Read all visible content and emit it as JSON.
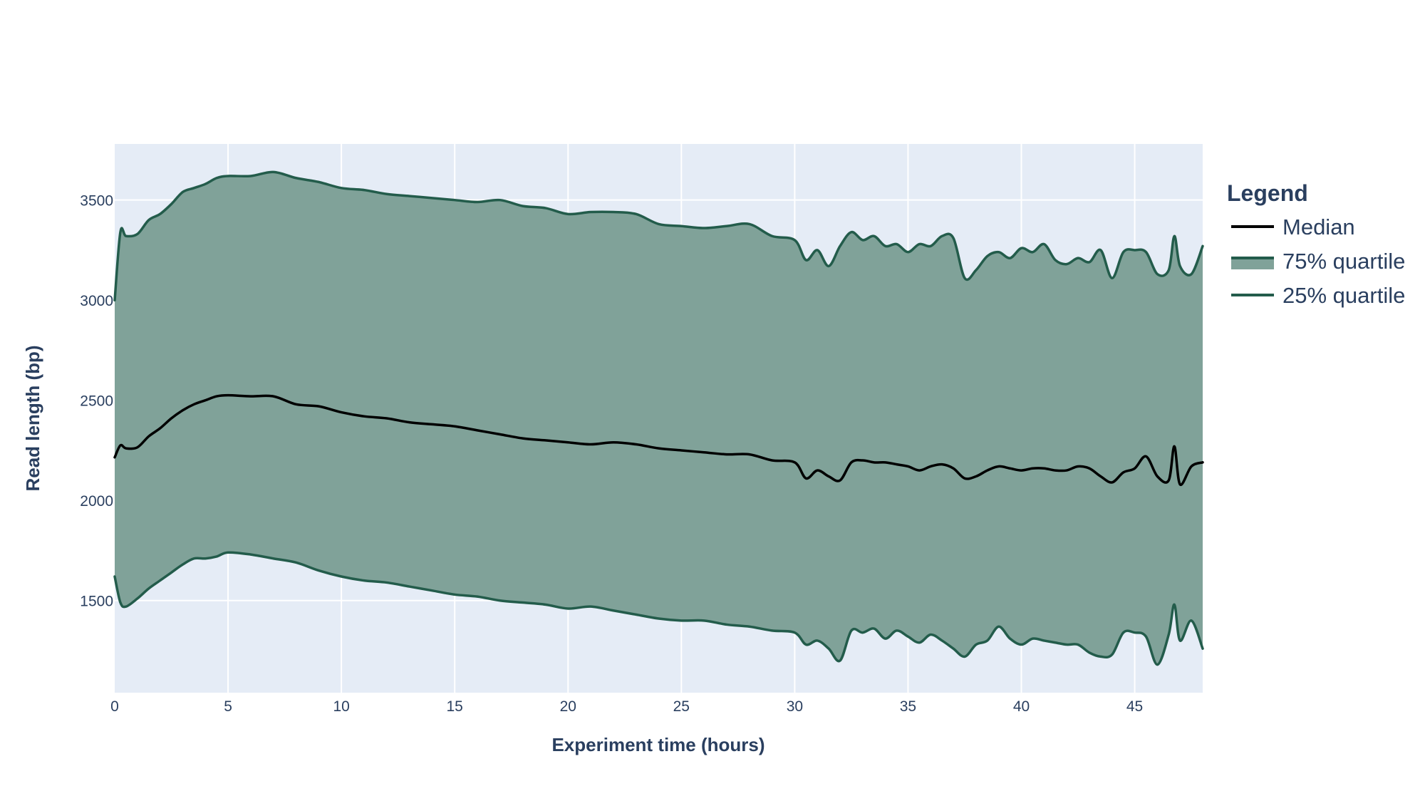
{
  "chart_data": {
    "type": "area",
    "title": "",
    "xlabel": "Experiment time (hours)",
    "ylabel": "Read length (bp)",
    "xlim": [
      0,
      48
    ],
    "ylim": [
      1040,
      3780
    ],
    "grid": true,
    "legend_title": "Legend",
    "legend_position": "right",
    "x_ticks": [
      0,
      5,
      10,
      15,
      20,
      25,
      30,
      35,
      40,
      45
    ],
    "y_ticks": [
      1500,
      2000,
      2500,
      3000,
      3500
    ],
    "fill": {
      "between": [
        "25% quartile",
        "75% quartile"
      ],
      "color": "#80a299"
    },
    "x": [
      0,
      0.25,
      0.5,
      1,
      1.5,
      2,
      2.5,
      3,
      3.5,
      4,
      4.5,
      5,
      6,
      7,
      8,
      9,
      10,
      11,
      12,
      13,
      14,
      15,
      16,
      17,
      18,
      19,
      20,
      21,
      22,
      23,
      24,
      25,
      26,
      27,
      28,
      29,
      30,
      30.5,
      31,
      31.5,
      32,
      32.5,
      33,
      33.5,
      34,
      34.5,
      35,
      35.5,
      36,
      36.5,
      37,
      37.5,
      38,
      38.5,
      39,
      39.5,
      40,
      40.5,
      41,
      41.5,
      42,
      42.5,
      43,
      43.5,
      44,
      44.5,
      45,
      45.5,
      46,
      46.5,
      46.75,
      47,
      47.5,
      48
    ],
    "series": [
      {
        "name": "Median",
        "color": "#000000",
        "values": [
          2215,
          2275,
          2260,
          2265,
          2320,
          2360,
          2410,
          2450,
          2480,
          2500,
          2520,
          2525,
          2520,
          2520,
          2480,
          2470,
          2440,
          2420,
          2410,
          2390,
          2380,
          2370,
          2350,
          2330,
          2310,
          2300,
          2290,
          2280,
          2290,
          2280,
          2260,
          2250,
          2240,
          2230,
          2230,
          2200,
          2190,
          2110,
          2150,
          2120,
          2100,
          2190,
          2200,
          2190,
          2190,
          2180,
          2170,
          2150,
          2170,
          2180,
          2160,
          2110,
          2120,
          2150,
          2170,
          2160,
          2150,
          2160,
          2160,
          2150,
          2150,
          2170,
          2160,
          2120,
          2090,
          2140,
          2160,
          2220,
          2120,
          2100,
          2270,
          2080,
          2170,
          2190
        ]
      },
      {
        "name": "75% quartile",
        "color": "#235c4b",
        "values": [
          3000,
          3340,
          3320,
          3330,
          3400,
          3430,
          3480,
          3540,
          3560,
          3580,
          3610,
          3620,
          3620,
          3640,
          3610,
          3590,
          3560,
          3550,
          3530,
          3520,
          3510,
          3500,
          3490,
          3500,
          3470,
          3460,
          3430,
          3440,
          3440,
          3430,
          3380,
          3370,
          3360,
          3370,
          3380,
          3320,
          3300,
          3200,
          3250,
          3170,
          3270,
          3340,
          3300,
          3320,
          3270,
          3280,
          3240,
          3280,
          3270,
          3320,
          3310,
          3110,
          3150,
          3220,
          3240,
          3210,
          3260,
          3240,
          3280,
          3200,
          3180,
          3210,
          3190,
          3250,
          3110,
          3240,
          3250,
          3240,
          3130,
          3150,
          3320,
          3170,
          3130,
          3270
        ]
      },
      {
        "name": "25% quartile",
        "color": "#235c4b",
        "values": [
          1620,
          1490,
          1470,
          1510,
          1560,
          1600,
          1640,
          1680,
          1710,
          1710,
          1720,
          1740,
          1730,
          1710,
          1690,
          1650,
          1620,
          1600,
          1590,
          1570,
          1550,
          1530,
          1520,
          1500,
          1490,
          1480,
          1460,
          1470,
          1450,
          1430,
          1410,
          1400,
          1400,
          1380,
          1370,
          1350,
          1340,
          1280,
          1300,
          1260,
          1200,
          1350,
          1340,
          1360,
          1310,
          1350,
          1320,
          1290,
          1330,
          1300,
          1260,
          1220,
          1280,
          1300,
          1370,
          1310,
          1280,
          1310,
          1300,
          1290,
          1280,
          1280,
          1240,
          1220,
          1230,
          1340,
          1340,
          1320,
          1180,
          1330,
          1480,
          1300,
          1400,
          1260
        ]
      }
    ]
  },
  "colors": {
    "plot_background": "#e5ecf6",
    "gridline": "#ffffff",
    "text": "#2a3f5f"
  }
}
